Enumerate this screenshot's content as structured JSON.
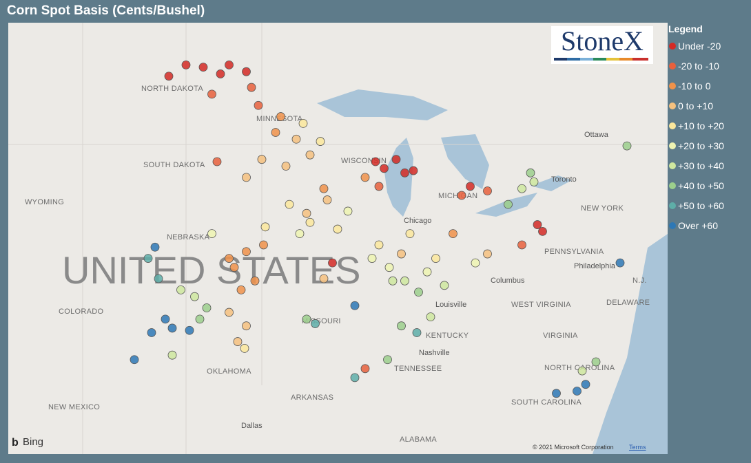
{
  "header": {
    "title": "Corn Spot Basis (Cents/Bushel)"
  },
  "map": {
    "labels": [
      "NORTH DAKOTA",
      "SOUTH DAKOTA",
      "MINNESOTA",
      "WYOMING",
      "NEBRASKA",
      "COLORADO",
      "MISSOURI",
      "KENTUCKY",
      "TENNESSEE",
      "OKLAHOMA",
      "ARKANSAS",
      "NEW MEXICO",
      "ALABAMA",
      "Dallas",
      "Chicago",
      "Nashville",
      "Louisville",
      "Columbus",
      "WEST VIRGINIA",
      "VIRGINIA",
      "NORTH CAROLINA",
      "SOUTH CAROLINA",
      "PENNSYLVANIA",
      "Philadelphia",
      "NEW YORK",
      "Toronto",
      "Ottawa",
      "DELAWARE",
      "N.J.",
      "MICHIGAN",
      "WISCONSIN",
      "UNITED STATES"
    ],
    "logo": "StoneX",
    "provider": "Bing",
    "copyright": "© 2021 Microsoft Corporation",
    "terms": "Terms",
    "legend_title": "Legend",
    "series": [
      {
        "name": "Under -20",
        "color": "#d42a25",
        "points": [
          [
            -101,
            48.8
          ],
          [
            -100,
            48.7
          ],
          [
            -98.5,
            48.8
          ],
          [
            -99,
            48.4
          ],
          [
            -97.5,
            48.5
          ],
          [
            -102,
            48.3
          ],
          [
            -90,
            44.5
          ],
          [
            -89.5,
            44.2
          ],
          [
            -88.8,
            44.6
          ],
          [
            -88.3,
            44.0
          ],
          [
            -87.8,
            44.1
          ],
          [
            -84.5,
            43.4
          ],
          [
            -80.3,
            41.4
          ],
          [
            -80.6,
            41.7
          ],
          [
            -92.5,
            40.0
          ]
        ]
      },
      {
        "name": "-20 to -10",
        "color": "#e8603c",
        "points": [
          [
            -99.5,
            47.5
          ],
          [
            -97.2,
            47.8
          ],
          [
            -96.8,
            47.0
          ],
          [
            -99.2,
            44.5
          ],
          [
            -85,
            43.0
          ],
          [
            -83.5,
            43.2
          ],
          [
            -89.8,
            43.4
          ],
          [
            -81.5,
            40.8
          ],
          [
            -90.6,
            35.3
          ]
        ]
      },
      {
        "name": "-10 to 0",
        "color": "#f0924a",
        "points": [
          [
            -97.5,
            40.5
          ],
          [
            -98.2,
            39.8
          ],
          [
            -97,
            39.2
          ],
          [
            -96.5,
            40.8
          ],
          [
            -97.8,
            38.8
          ],
          [
            -98.5,
            40.2
          ],
          [
            -95.5,
            46.5
          ],
          [
            -95.8,
            45.8
          ],
          [
            -93,
            43.3
          ],
          [
            -90.6,
            43.8
          ],
          [
            -85.5,
            41.3
          ]
        ]
      },
      {
        "name": "0 to +10",
        "color": "#f6c17f",
        "points": [
          [
            -94.6,
            45.5
          ],
          [
            -93.8,
            44.8
          ],
          [
            -95.2,
            44.3
          ],
          [
            -97.5,
            43.8
          ],
          [
            -96.6,
            44.6
          ],
          [
            -94,
            42.2
          ],
          [
            -92.8,
            42.8
          ],
          [
            -98.5,
            37.8
          ],
          [
            -97.5,
            37.2
          ],
          [
            -98,
            36.5
          ],
          [
            -93,
            39.3
          ],
          [
            -88.5,
            40.4
          ],
          [
            -83.5,
            40.4
          ]
        ]
      },
      {
        "name": "+10 to +20",
        "color": "#fbe79c",
        "points": [
          [
            -94.2,
            46.2
          ],
          [
            -93.2,
            45.4
          ],
          [
            -93.8,
            41.8
          ],
          [
            -95,
            42.6
          ],
          [
            -92.2,
            41.5
          ],
          [
            -96.4,
            41.6
          ],
          [
            -89.8,
            40.8
          ],
          [
            -88,
            41.3
          ],
          [
            -86.5,
            40.2
          ],
          [
            -97.6,
            36.2
          ]
        ]
      },
      {
        "name": "+20 to +30",
        "color": "#eff4b2",
        "points": [
          [
            -91.6,
            42.3
          ],
          [
            -94.4,
            41.3
          ],
          [
            -89.2,
            39.8
          ],
          [
            -90.2,
            40.2
          ],
          [
            -87.0,
            39.6
          ],
          [
            -99.5,
            41.3
          ],
          [
            -84.2,
            40.0
          ]
        ]
      },
      {
        "name": "+30 to +40",
        "color": "#cfe79f",
        "points": [
          [
            -88.3,
            39.2
          ],
          [
            -89,
            39.2
          ],
          [
            -86,
            39.0
          ],
          [
            -81.5,
            43.3
          ],
          [
            -80.8,
            43.6
          ],
          [
            -86.8,
            37.6
          ],
          [
            -100.5,
            38.5
          ],
          [
            -101.3,
            38.8
          ],
          [
            -101.8,
            35.9
          ],
          [
            -78.0,
            35.2
          ]
        ]
      },
      {
        "name": "+40 to +50",
        "color": "#9ccf8c",
        "points": [
          [
            -82.3,
            42.6
          ],
          [
            -81.0,
            44.0
          ],
          [
            -87.5,
            38.7
          ],
          [
            -99.8,
            38.0
          ],
          [
            -100.2,
            37.5
          ],
          [
            -94,
            37.5
          ],
          [
            -88.5,
            37.2
          ],
          [
            -89.3,
            35.7
          ],
          [
            -75.4,
            45.2
          ],
          [
            -77.2,
            35.6
          ]
        ]
      },
      {
        "name": "+50 to +60",
        "color": "#5eaea8",
        "points": [
          [
            -103.2,
            40.2
          ],
          [
            -102.6,
            39.3
          ],
          [
            -93.5,
            37.3
          ],
          [
            -87.6,
            36.9
          ],
          [
            -91.2,
            34.9
          ]
        ]
      },
      {
        "name": "Over +60",
        "color": "#2e78b5",
        "points": [
          [
            -102.2,
            37.5
          ],
          [
            -101.8,
            37.1
          ],
          [
            -103.0,
            36.9
          ],
          [
            -100.8,
            37.0
          ],
          [
            -102.8,
            40.7
          ],
          [
            -104,
            35.7
          ],
          [
            -91.2,
            38.1
          ],
          [
            -78.3,
            34.3
          ],
          [
            -77.8,
            34.6
          ],
          [
            -79.5,
            34.2
          ],
          [
            -75.8,
            40.0
          ]
        ]
      }
    ]
  }
}
